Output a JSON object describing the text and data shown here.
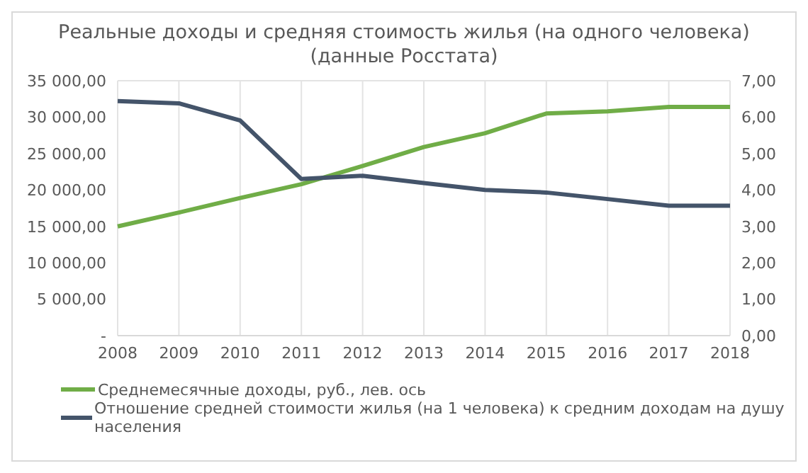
{
  "chart_data": {
    "type": "line",
    "title": "Реальные доходы и средняя стоимость жилья (на одного человека)\n(данные Росстата)",
    "categories": [
      "2008",
      "2009",
      "2010",
      "2011",
      "2012",
      "2013",
      "2014",
      "2015",
      "2016",
      "2017",
      "2018"
    ],
    "series": [
      {
        "name": "Среднемесячные доходы, руб., лев. ось",
        "color": "#70ad47",
        "values": [
          15000,
          16900,
          18900,
          20800,
          23300,
          25900,
          27800,
          30500,
          30800,
          31400,
          31400
        ]
      },
      {
        "name": "Отношение средней стоимости жилья (на 1 человека) к средним доходам на душу населения",
        "color": "#44546a",
        "axis": "y2",
        "values": [
          6.44,
          6.38,
          5.91,
          4.3,
          4.39,
          4.19,
          4.0,
          3.93,
          3.75,
          3.57,
          3.57
        ]
      }
    ],
    "ylim": [
      0,
      35000
    ],
    "yticks": [
      {
        "value": 0,
        "label": "-"
      },
      {
        "value": 5000,
        "label": "5 000,00"
      },
      {
        "value": 10000,
        "label": "10 000,00"
      },
      {
        "value": 15000,
        "label": "15 000,00"
      },
      {
        "value": 20000,
        "label": "20 000,00"
      },
      {
        "value": 25000,
        "label": "25 000,00"
      },
      {
        "value": 30000,
        "label": "30 000,00"
      },
      {
        "value": 35000,
        "label": "35 000,00"
      }
    ],
    "y2lim": [
      0,
      7
    ],
    "y2ticks": [
      {
        "value": 0,
        "label": "0,00"
      },
      {
        "value": 1,
        "label": "1,00"
      },
      {
        "value": 2,
        "label": "2,00"
      },
      {
        "value": 3,
        "label": "3,00"
      },
      {
        "value": 4,
        "label": "4,00"
      },
      {
        "value": 5,
        "label": "5,00"
      },
      {
        "value": 6,
        "label": "6,00"
      },
      {
        "value": 7,
        "label": "7,00"
      }
    ],
    "grid": true,
    "legend": "bottom",
    "marker": "none",
    "line_style": "solid"
  }
}
